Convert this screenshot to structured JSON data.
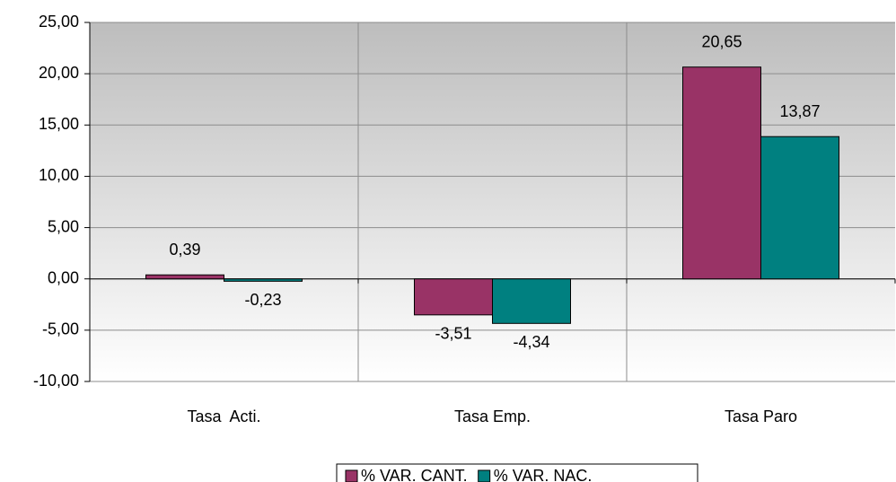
{
  "chart_data": {
    "type": "bar",
    "categories": [
      "Tasa  Acti.",
      "Tasa Emp.",
      "Tasa Paro"
    ],
    "series": [
      {
        "name": "% VAR. CANT.",
        "color": "#993366",
        "values": [
          0.39,
          -3.51,
          20.65
        ],
        "value_labels": [
          "0,39",
          "-3,51",
          "20,65"
        ]
      },
      {
        "name": "% VAR. NAC.",
        "color": "#008080",
        "values": [
          -0.23,
          -4.34,
          13.87
        ],
        "value_labels": [
          "-0,23",
          "-4,34",
          "13,87"
        ]
      }
    ],
    "ylim": [
      -10,
      25
    ],
    "yticks": [
      {
        "value": -10,
        "label": "-10,00"
      },
      {
        "value": -5,
        "label": "-5,00"
      },
      {
        "value": 0,
        "label": "0,00"
      },
      {
        "value": 5,
        "label": "5,00"
      },
      {
        "value": 10,
        "label": "10,00"
      },
      {
        "value": 15,
        "label": "15,00"
      },
      {
        "value": 20,
        "label": "20,00"
      },
      {
        "value": 25,
        "label": "25,00"
      }
    ],
    "grid": true,
    "legend": "bottom"
  }
}
